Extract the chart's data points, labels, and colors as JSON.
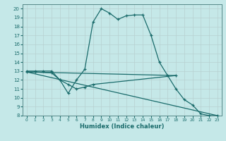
{
  "xlabel": "Humidex (Indice chaleur)",
  "xlim": [
    -0.5,
    23.5
  ],
  "ylim": [
    8,
    20.5
  ],
  "yticks": [
    8,
    9,
    10,
    11,
    12,
    13,
    14,
    15,
    16,
    17,
    18,
    19,
    20
  ],
  "xticks": [
    0,
    1,
    2,
    3,
    4,
    5,
    6,
    7,
    8,
    9,
    10,
    11,
    12,
    13,
    14,
    15,
    16,
    17,
    18,
    19,
    20,
    21,
    22,
    23
  ],
  "bg_color": "#c5e8e8",
  "line_color": "#1a6b6b",
  "line1_x": [
    0,
    1,
    2,
    3,
    4,
    5,
    6,
    7,
    8,
    9,
    10,
    11,
    12,
    13,
    14,
    15,
    16,
    17,
    18,
    19,
    20,
    21,
    22,
    23
  ],
  "line1_y": [
    13,
    13,
    13,
    13,
    12,
    10.5,
    12,
    13.2,
    18.5,
    20,
    19.5,
    18.8,
    19.2,
    19.3,
    19.3,
    17,
    14,
    12.5,
    11,
    9.8,
    9.2,
    8.2,
    8.0,
    8.0
  ],
  "line2_x": [
    0,
    1,
    3,
    4,
    5,
    6,
    7,
    8,
    18
  ],
  "line2_y": [
    12.9,
    12.9,
    12.8,
    12.0,
    11.5,
    11.0,
    11.2,
    11.5,
    12.5
  ],
  "line3_x": [
    0,
    18
  ],
  "line3_y": [
    12.9,
    12.5
  ],
  "line4_x": [
    0,
    23
  ],
  "line4_y": [
    12.9,
    8.0
  ]
}
